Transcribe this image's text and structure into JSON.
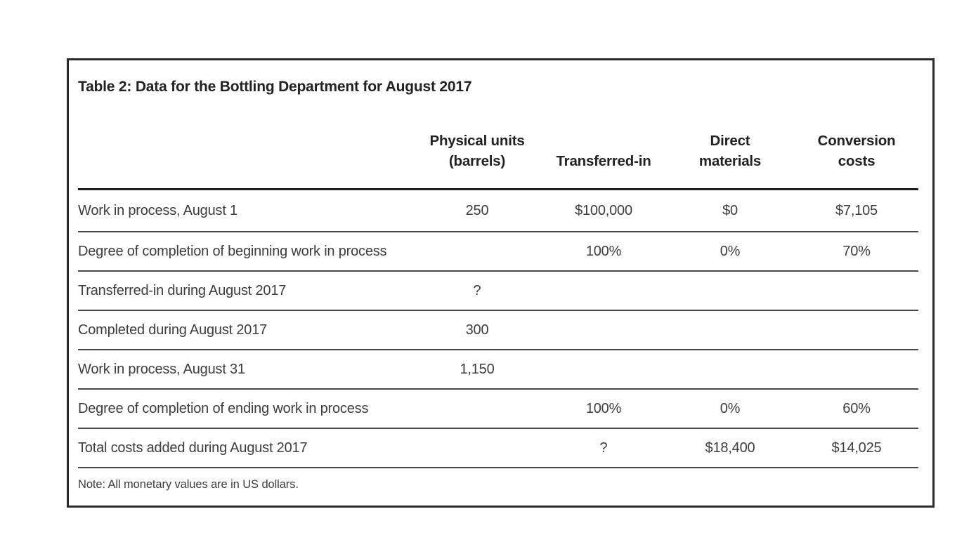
{
  "table": {
    "title": "Table 2: Data for the Bottling Department for August 2017",
    "columns": [
      {
        "line1": "Physical units",
        "line2": "(barrels)"
      },
      {
        "line1": "",
        "line2": "Transferred-in"
      },
      {
        "line1": "Direct",
        "line2": "materials"
      },
      {
        "line1": "Conversion",
        "line2": "costs"
      }
    ],
    "rows": [
      {
        "label": "Work in process, August 1",
        "values": [
          "250",
          "$100,000",
          "$0",
          "$7,105"
        ]
      },
      {
        "label": "Degree of completion of beginning work in process",
        "values": [
          "",
          "100%",
          "0%",
          "70%"
        ]
      },
      {
        "label": "Transferred-in during August 2017",
        "values": [
          "?",
          "",
          "",
          ""
        ]
      },
      {
        "label": "Completed during August 2017",
        "values": [
          "300",
          "",
          "",
          ""
        ]
      },
      {
        "label": "Work in process, August 31",
        "values": [
          "1,150",
          "",
          "",
          ""
        ]
      },
      {
        "label": "Degree of completion of ending work in process",
        "values": [
          "",
          "100%",
          "0%",
          "60%"
        ]
      },
      {
        "label": "Total costs added during August 2017",
        "values": [
          "",
          "?",
          "$18,400",
          "$14,025"
        ]
      }
    ],
    "note": "Note: All monetary values are in US dollars.",
    "colors": {
      "border": "#2b2b2d",
      "header_rule": "#1e1e1e",
      "row_rule": "#484848",
      "heading_text": "#242122",
      "body_text": "#3d3d3d",
      "background": "#ffffff"
    }
  }
}
